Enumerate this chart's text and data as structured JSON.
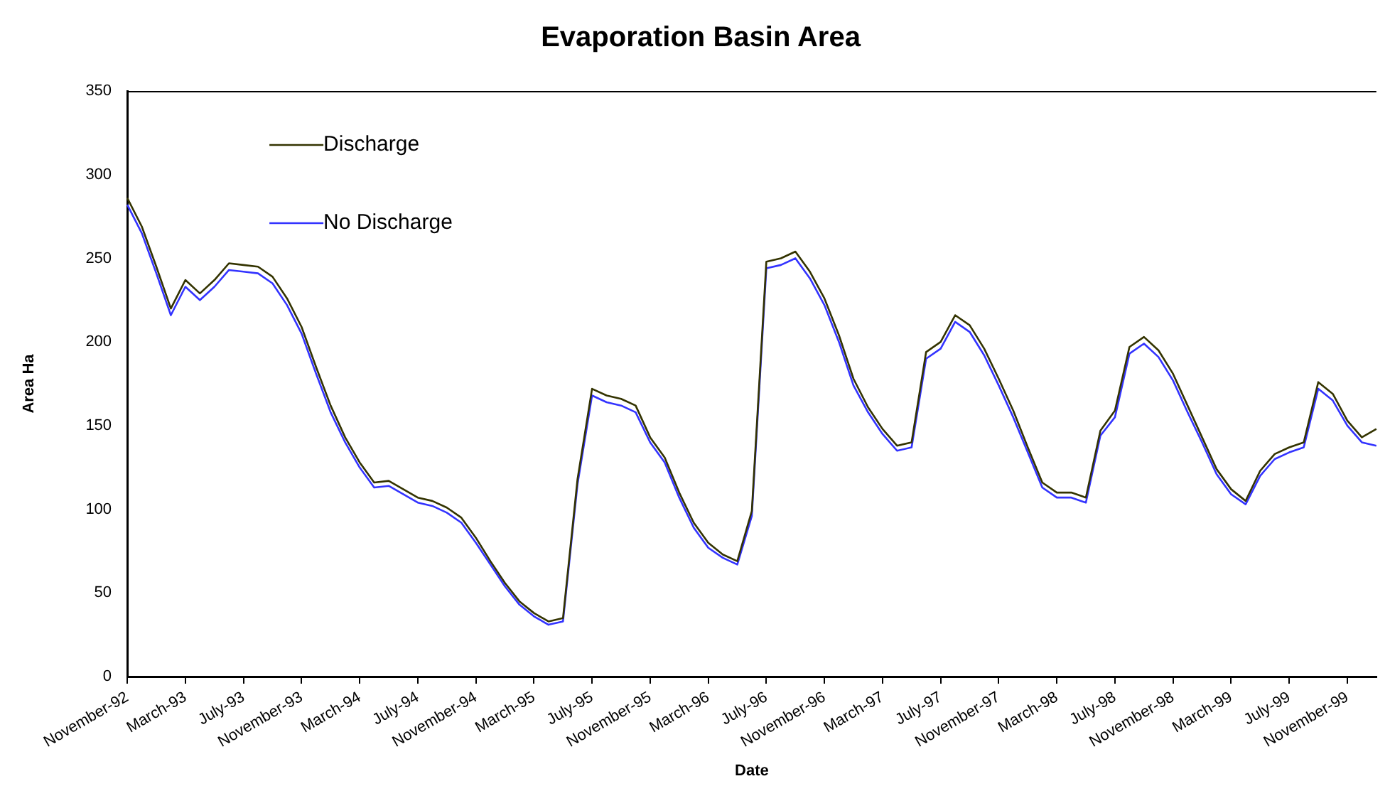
{
  "chart_data": {
    "type": "line",
    "title": "Evaporation Basin Area",
    "xlabel": "Date",
    "ylabel": "Area Ha",
    "categories": [
      "November-92",
      null,
      null,
      null,
      "March-93",
      null,
      null,
      null,
      "July-93",
      null,
      null,
      null,
      "November-93",
      null,
      null,
      null,
      "March-94",
      null,
      null,
      null,
      "July-94",
      null,
      null,
      null,
      "November-94",
      null,
      null,
      null,
      "March-95",
      null,
      null,
      null,
      "July-95",
      null,
      null,
      null,
      "November-95",
      null,
      null,
      null,
      "March-96",
      null,
      null,
      null,
      "July-96",
      null,
      null,
      null,
      "November-96",
      null,
      null,
      null,
      "March-97",
      null,
      null,
      null,
      "July-97",
      null,
      null,
      null,
      "November-97",
      null,
      null,
      null,
      "March-98",
      null,
      null,
      null,
      "July-98",
      null,
      null,
      null,
      "November-98",
      null,
      null,
      null,
      "March-99",
      null,
      null,
      null,
      "July-99",
      null,
      null,
      null,
      "November-99",
      null,
      null
    ],
    "series": [
      {
        "name": "Discharge",
        "color": "#333300",
        "values": [
          286,
          269,
          245,
          220,
          237,
          229,
          237,
          247,
          246,
          245,
          239,
          226,
          209,
          185,
          162,
          143,
          128,
          116,
          117,
          112,
          107,
          105,
          101,
          95,
          83,
          69,
          56,
          45,
          38,
          33,
          35,
          118,
          172,
          168,
          166,
          162,
          143,
          131,
          110,
          92,
          80,
          73,
          69,
          99,
          248,
          250,
          254,
          242,
          226,
          204,
          178,
          161,
          148,
          138,
          140,
          194,
          200,
          216,
          210,
          196,
          178,
          159,
          137,
          116,
          110,
          110,
          107,
          147,
          159,
          197,
          203,
          195,
          181,
          162,
          143,
          124,
          112,
          105,
          123,
          133,
          137,
          140,
          176,
          169,
          153,
          143,
          148
        ]
      },
      {
        "name": "No Discharge",
        "color": "#3333ff",
        "values": [
          282,
          265,
          241,
          216,
          233,
          225,
          233,
          243,
          242,
          241,
          235,
          222,
          205,
          181,
          158,
          140,
          125,
          113,
          114,
          109,
          104,
          102,
          98,
          92,
          80,
          67,
          54,
          43,
          36,
          31,
          33,
          115,
          168,
          164,
          162,
          158,
          140,
          128,
          107,
          89,
          77,
          71,
          67,
          96,
          244,
          246,
          250,
          238,
          222,
          200,
          174,
          158,
          145,
          135,
          137,
          190,
          196,
          212,
          206,
          192,
          174,
          155,
          134,
          113,
          107,
          107,
          104,
          144,
          155,
          193,
          199,
          191,
          177,
          158,
          140,
          121,
          109,
          103,
          120,
          130,
          134,
          137,
          172,
          165,
          150,
          140,
          138
        ]
      }
    ],
    "ylim": [
      0,
      350
    ],
    "yticks": [
      0,
      50,
      100,
      150,
      200,
      250,
      300,
      350
    ],
    "grid": false,
    "legend": "top left",
    "marker": "none",
    "line_style": "solid"
  }
}
